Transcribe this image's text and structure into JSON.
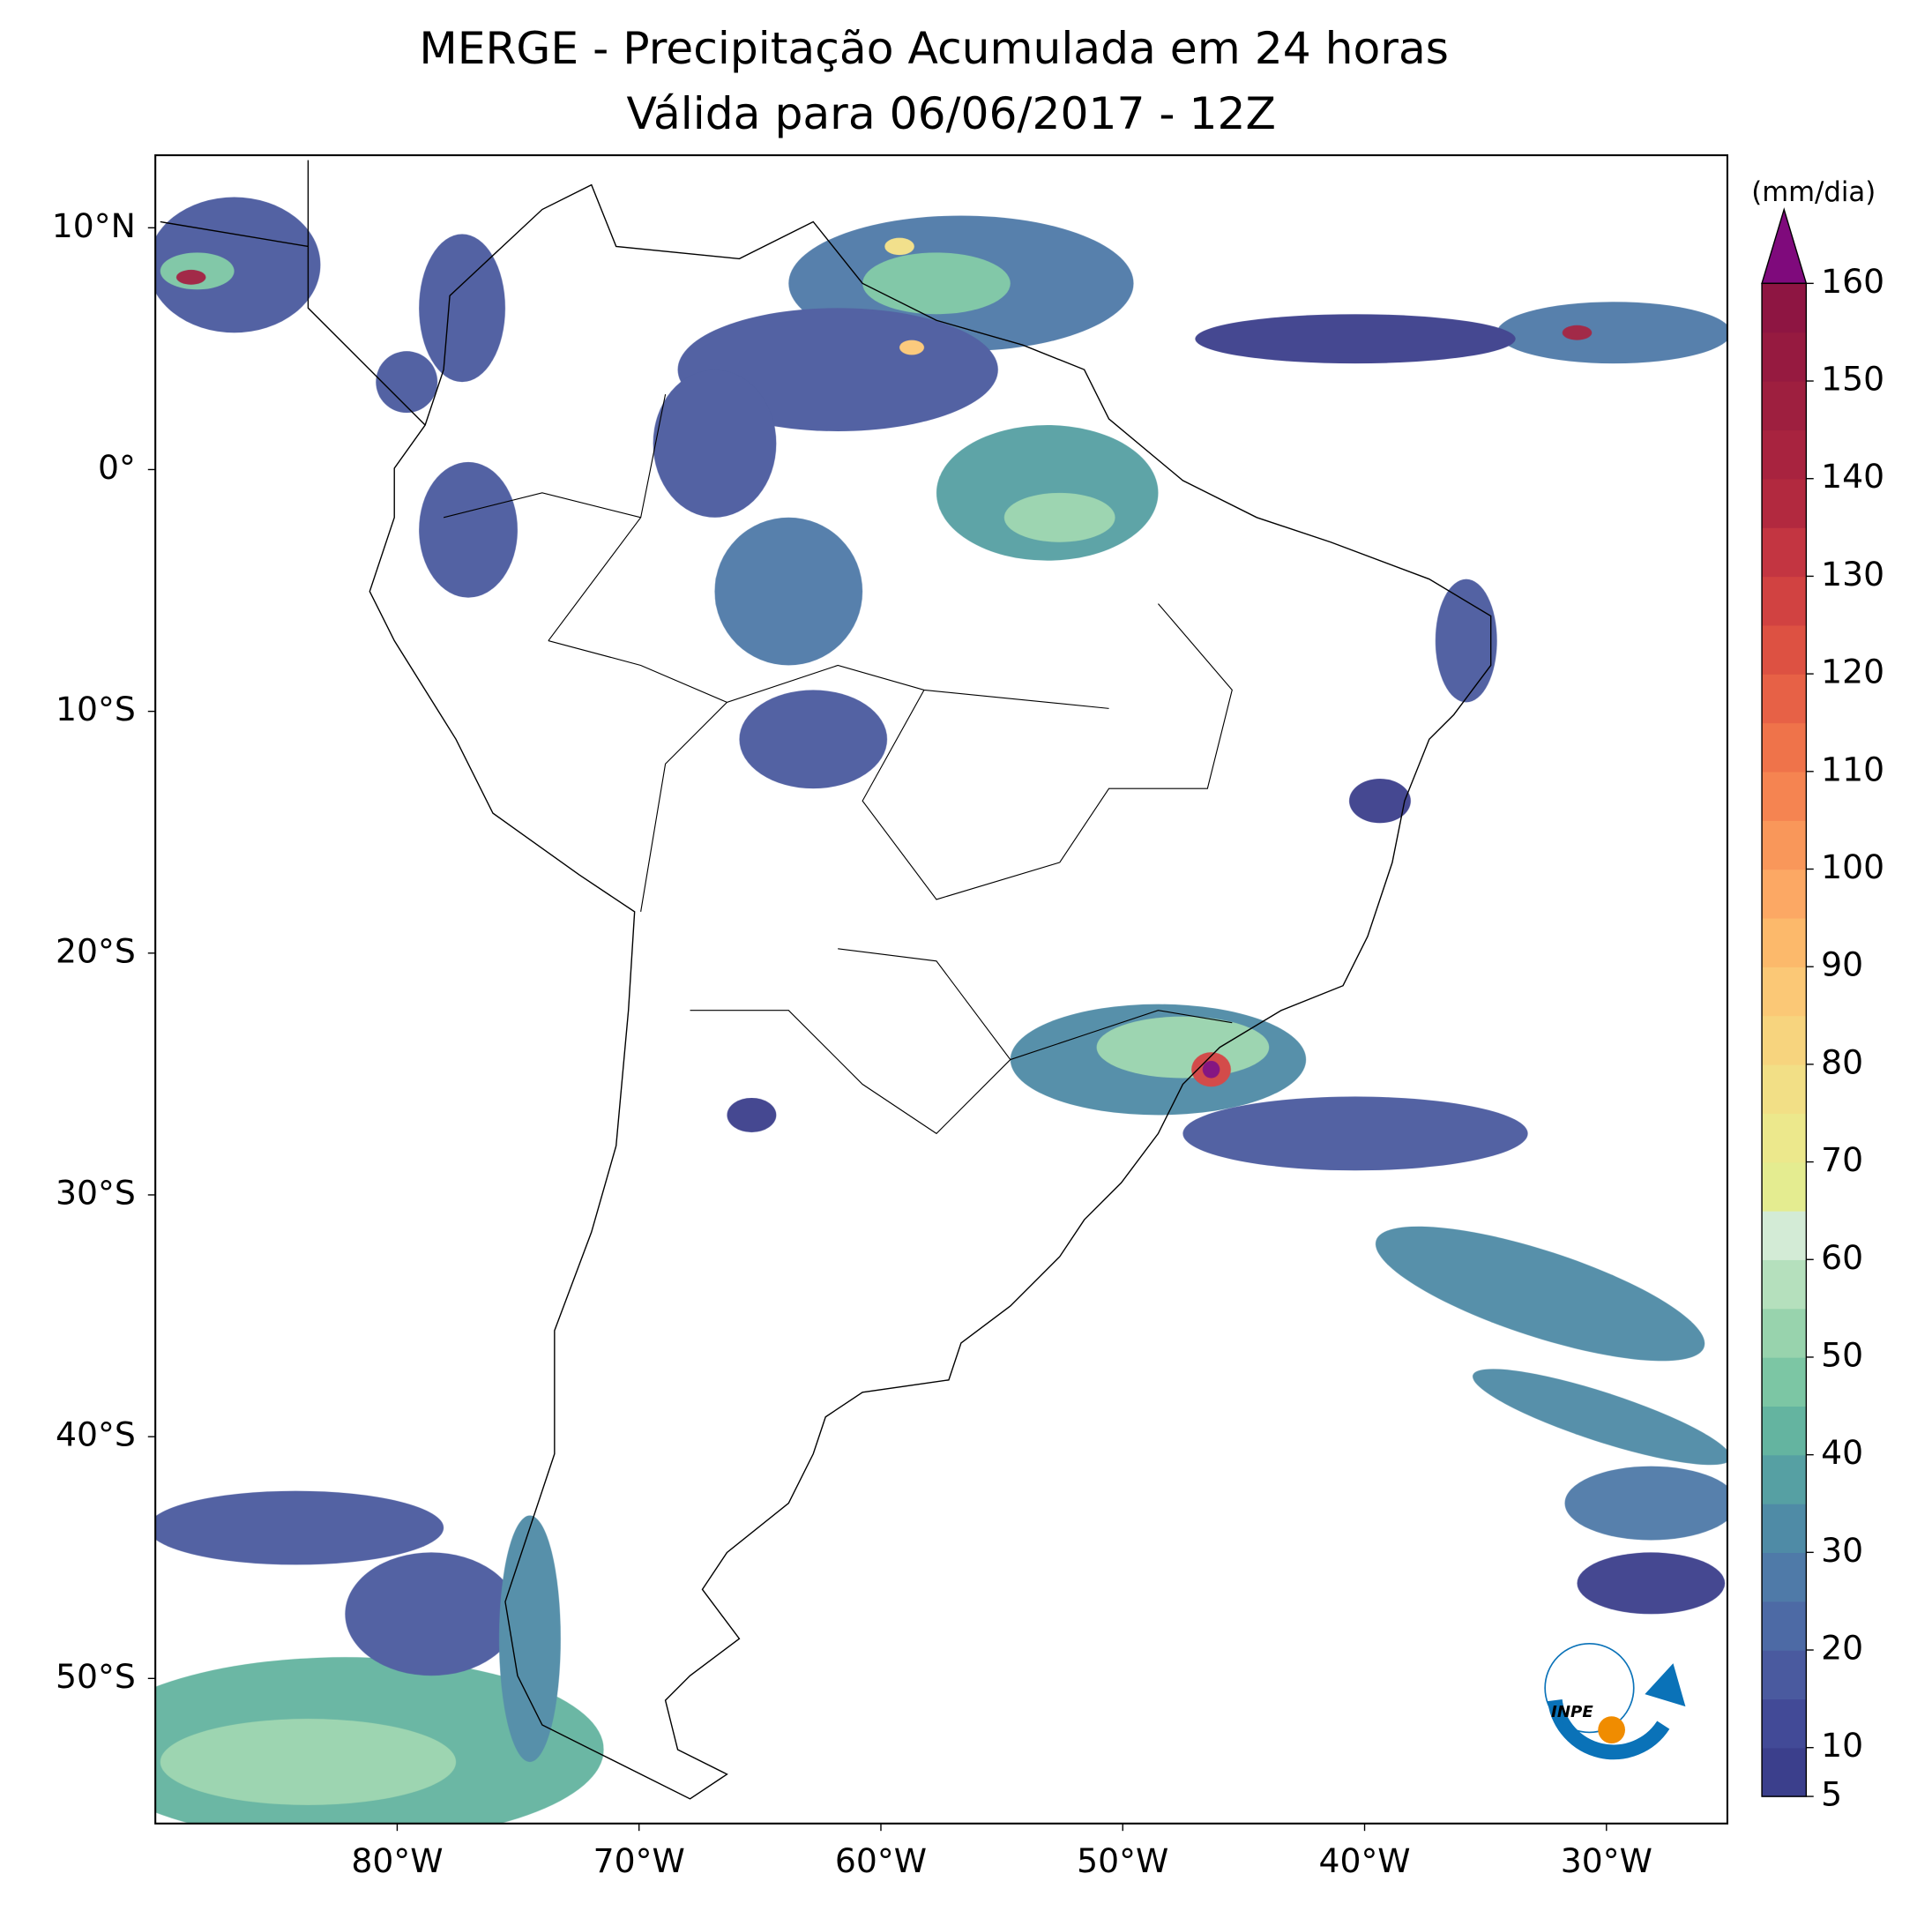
{
  "header": {
    "title": "MERGE - Precipitação Acumulada em 24 horas",
    "subtitle": "Válida para 06/06/2017 - 12Z"
  },
  "map": {
    "xlim": [
      -90,
      -25
    ],
    "ylim": [
      -56,
      13
    ],
    "xticks": [
      {
        "value": -80,
        "label": "80°W"
      },
      {
        "value": -70,
        "label": "70°W"
      },
      {
        "value": -60,
        "label": "60°W"
      },
      {
        "value": -50,
        "label": "50°W"
      },
      {
        "value": -40,
        "label": "40°W"
      },
      {
        "value": -30,
        "label": "30°W"
      }
    ],
    "yticks": [
      {
        "value": 10,
        "label": "10°N"
      },
      {
        "value": 0,
        "label": "0°"
      },
      {
        "value": -10,
        "label": "10°S"
      },
      {
        "value": -20,
        "label": "20°S"
      },
      {
        "value": -30,
        "label": "30°S"
      },
      {
        "value": -40,
        "label": "40°S"
      },
      {
        "value": -50,
        "label": "50°S"
      }
    ]
  },
  "colorbar": {
    "label": "(mm/dia)",
    "lim": [
      5,
      160
    ],
    "ticks": [
      5,
      10,
      20,
      30,
      40,
      50,
      60,
      70,
      80,
      90,
      100,
      110,
      120,
      130,
      140,
      150,
      160
    ],
    "colors": [
      "#3b3f8c",
      "#424a97",
      "#4a5a9f",
      "#4d6aa5",
      "#4f7aa8",
      "#4f8ba6",
      "#56a0a3",
      "#64b4a0",
      "#7cc6a4",
      "#98d3ad",
      "#b5e0bd",
      "#d3ebd6",
      "#e4ec90",
      "#ece88c",
      "#f2df86",
      "#f7d47e",
      "#fbc876",
      "#fcb96b",
      "#fca864",
      "#f9975a",
      "#f58451",
      "#ef734a",
      "#e76146",
      "#dd5142",
      "#d14241",
      "#c33541",
      "#b2293f",
      "#a8233f",
      "#9e1f3f",
      "#961a40",
      "#8e1542"
    ],
    "extend_color": "#7f0a7c"
  },
  "logo": {
    "text": "INPE"
  }
}
